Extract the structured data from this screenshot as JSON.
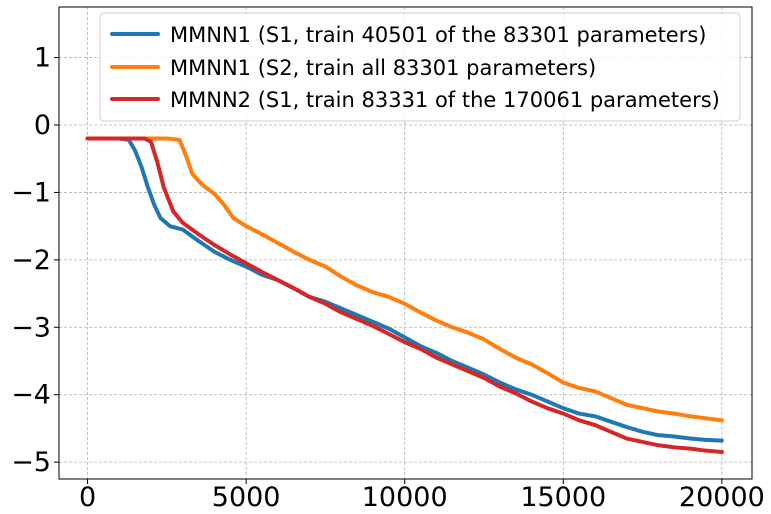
{
  "chart_data": {
    "type": "line",
    "title": "",
    "xlabel": "",
    "ylabel": "",
    "xlim": [
      -900,
      20950
    ],
    "ylim": [
      -5.25,
      1.75
    ],
    "xticks": [
      0,
      5000,
      10000,
      15000,
      20000
    ],
    "xtick_labels": [
      "0",
      "5000",
      "10000",
      "15000",
      "20000"
    ],
    "yticks": [
      1,
      0,
      -1,
      -2,
      -3,
      -4,
      -5
    ],
    "ytick_labels": [
      "1",
      "0",
      "−1",
      "−2",
      "−3",
      "−4",
      "−5"
    ],
    "grid": true,
    "legend_position": "top-right",
    "series": [
      {
        "name": "MMNN1 (S1, train 40501 of the 83301 parameters)",
        "color": "#1f77b4",
        "x": [
          0,
          500,
          1000,
          1300,
          1500,
          1700,
          1900,
          2100,
          2300,
          2600,
          3000,
          3500,
          4000,
          4500,
          5000,
          5500,
          6000,
          6500,
          7000,
          7500,
          8000,
          8500,
          9000,
          9500,
          10000,
          10500,
          11000,
          11500,
          12000,
          12500,
          13000,
          13500,
          14000,
          14500,
          15000,
          15500,
          16000,
          16500,
          17000,
          17500,
          18000,
          18500,
          19000,
          19500,
          20000
        ],
        "values": [
          -0.2,
          -0.2,
          -0.2,
          -0.22,
          -0.38,
          -0.62,
          -0.92,
          -1.18,
          -1.38,
          -1.5,
          -1.55,
          -1.72,
          -1.88,
          -2.0,
          -2.1,
          -2.22,
          -2.3,
          -2.42,
          -2.55,
          -2.62,
          -2.72,
          -2.82,
          -2.92,
          -3.02,
          -3.15,
          -3.28,
          -3.38,
          -3.5,
          -3.6,
          -3.7,
          -3.82,
          -3.92,
          -4.0,
          -4.1,
          -4.2,
          -4.28,
          -4.32,
          -4.4,
          -4.48,
          -4.55,
          -4.6,
          -4.62,
          -4.65,
          -4.67,
          -4.68
        ]
      },
      {
        "name": "MMNN1 (S2, train all 83301 parameters)",
        "color": "#ff7f0e",
        "x": [
          0,
          500,
          1000,
          1500,
          2000,
          2500,
          2900,
          3100,
          3300,
          3600,
          4000,
          4300,
          4600,
          5000,
          5500,
          6000,
          6500,
          7000,
          7500,
          8000,
          8500,
          9000,
          9500,
          10000,
          10500,
          11000,
          11500,
          12000,
          12500,
          13000,
          13500,
          14000,
          14500,
          15000,
          15500,
          16000,
          16500,
          17000,
          17500,
          18000,
          18500,
          19000,
          19500,
          20000
        ],
        "values": [
          -0.2,
          -0.2,
          -0.2,
          -0.2,
          -0.2,
          -0.2,
          -0.22,
          -0.45,
          -0.72,
          -0.88,
          -1.02,
          -1.18,
          -1.38,
          -1.5,
          -1.62,
          -1.75,
          -1.88,
          -2.0,
          -2.1,
          -2.25,
          -2.38,
          -2.48,
          -2.55,
          -2.65,
          -2.78,
          -2.9,
          -3.0,
          -3.08,
          -3.18,
          -3.32,
          -3.45,
          -3.55,
          -3.68,
          -3.82,
          -3.9,
          -3.95,
          -4.05,
          -4.15,
          -4.2,
          -4.25,
          -4.28,
          -4.32,
          -4.35,
          -4.38
        ]
      },
      {
        "name": "MMNN2 (S1, train 83331 of the 170061 parameters)",
        "color": "#d62728",
        "x": [
          0,
          500,
          1000,
          1500,
          1800,
          2000,
          2200,
          2400,
          2700,
          3000,
          3500,
          4000,
          4500,
          5000,
          5500,
          6000,
          6500,
          7000,
          7500,
          8000,
          8500,
          9000,
          9500,
          10000,
          10500,
          11000,
          11500,
          12000,
          12500,
          13000,
          13500,
          14000,
          14500,
          15000,
          15500,
          16000,
          16500,
          17000,
          17500,
          18000,
          18500,
          19000,
          19500,
          20000
        ],
        "values": [
          -0.2,
          -0.2,
          -0.2,
          -0.2,
          -0.2,
          -0.25,
          -0.55,
          -0.92,
          -1.28,
          -1.45,
          -1.62,
          -1.78,
          -1.92,
          -2.05,
          -2.18,
          -2.3,
          -2.42,
          -2.55,
          -2.65,
          -2.78,
          -2.88,
          -2.98,
          -3.1,
          -3.22,
          -3.32,
          -3.45,
          -3.55,
          -3.65,
          -3.75,
          -3.88,
          -3.98,
          -4.1,
          -4.2,
          -4.28,
          -4.38,
          -4.45,
          -4.55,
          -4.65,
          -4.7,
          -4.75,
          -4.78,
          -4.8,
          -4.83,
          -4.85
        ]
      }
    ]
  }
}
